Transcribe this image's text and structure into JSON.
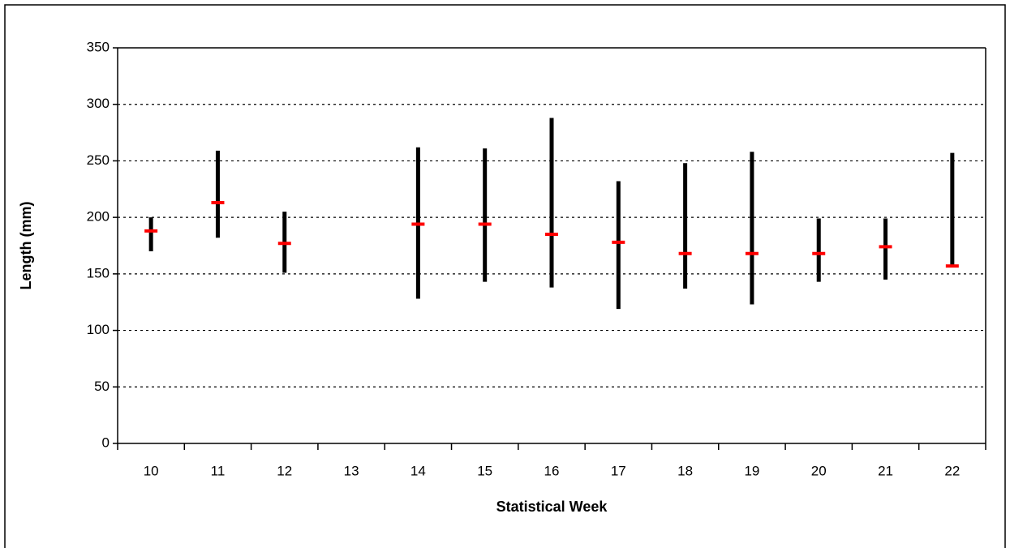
{
  "chart_data": {
    "type": "range",
    "x_label": "Statistical Week",
    "y_label": "Length (mm)",
    "categories": [
      "10",
      "11",
      "12",
      "13",
      "14",
      "15",
      "16",
      "17",
      "18",
      "19",
      "20",
      "21",
      "22"
    ],
    "high": [
      200,
      259,
      205,
      null,
      262,
      261,
      288,
      232,
      248,
      258,
      199,
      199,
      257
    ],
    "low": [
      170,
      182,
      151,
      null,
      128,
      143,
      138,
      119,
      137,
      123,
      143,
      145,
      157
    ],
    "mean": [
      188,
      213,
      177,
      null,
      194,
      194,
      185,
      178,
      168,
      168,
      168,
      174,
      157
    ],
    "color": "#000000",
    "mean_color": "#ff0000",
    "ylim": [
      0,
      350
    ],
    "yticks": [
      0,
      50,
      100,
      150,
      200,
      250,
      300,
      350
    ],
    "grid": true
  }
}
